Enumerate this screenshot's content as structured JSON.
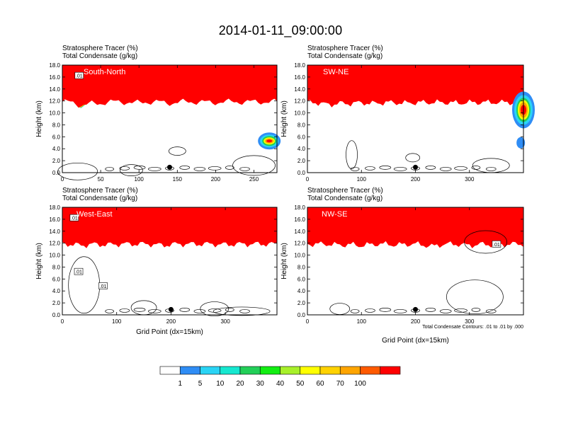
{
  "page": {
    "title": "2014-01-11_09:00:00",
    "contour_note": "Total Condensate Contours: .01 to .01 by .000",
    "xlabel": "Grid Point (dx=15km)",
    "colorbar": {
      "colors": [
        "#ffffff",
        "#2f8df5",
        "#2ad4f5",
        "#16e8d0",
        "#22cf58",
        "#12ee12",
        "#a8f02a",
        "#ffff00",
        "#ffd200",
        "#ffa500",
        "#ff5a00",
        "#ff0000"
      ],
      "labels": [
        "1",
        "5",
        "10",
        "20",
        "30",
        "40",
        "50",
        "60",
        "70",
        "100"
      ]
    }
  },
  "chart_data": [
    {
      "type": "heatmap",
      "region": "South-North",
      "title_line1": "Stratosphere Tracer   (%)",
      "title_line2": "Total Condensate   (g/kg)",
      "ylabel": "Height (km)",
      "xlabel": "",
      "xlim": [
        0,
        280
      ],
      "ylim": [
        0,
        18
      ],
      "xticks": [
        "0",
        "50",
        "100",
        "150",
        "200",
        "250"
      ],
      "yticks": [
        "0.0",
        "2.0",
        "4.0",
        "6.0",
        "8.0",
        "10.0",
        "12.0",
        "14.0",
        "16.0",
        "18.0"
      ],
      "contour_labels": [
        ".01"
      ]
    },
    {
      "type": "heatmap",
      "region": "SW-NE",
      "title_line1": "Stratosphere Tracer   (%)",
      "title_line2": "Total Condensate   (g/kg)",
      "ylabel": "Height (km)",
      "xlabel": "",
      "xlim": [
        0,
        400
      ],
      "ylim": [
        0,
        18
      ],
      "xticks": [
        "0",
        "100",
        "200",
        "300"
      ],
      "yticks": [
        "0.0",
        "2.0",
        "4.0",
        "6.0",
        "8.0",
        "10.0",
        "12.0",
        "14.0",
        "16.0",
        "18.0"
      ],
      "contour_labels": []
    },
    {
      "type": "heatmap",
      "region": "West-East",
      "title_line1": "Stratosphere Tracer   (%)",
      "title_line2": "Total Condensate   (g/kg)",
      "ylabel": "Height (km)",
      "xlabel": "Grid Point (dx=15km)",
      "xlim": [
        0,
        395
      ],
      "ylim": [
        0,
        18
      ],
      "xticks": [
        "0",
        "100",
        "200",
        "300"
      ],
      "yticks": [
        "0.0",
        "2.0",
        "4.0",
        "6.0",
        "8.0",
        "10.0",
        "12.0",
        "14.0",
        "16.0",
        "18.0"
      ],
      "contour_labels": [
        ".01",
        ".01",
        ".01"
      ]
    },
    {
      "type": "heatmap",
      "region": "NW-SE",
      "title_line1": "Stratosphere Tracer   (%)",
      "title_line2": "Total Condensate   (g/kg)",
      "ylabel": "Height (km)",
      "xlabel": "Grid Point (dx=15km)",
      "xlim": [
        0,
        400
      ],
      "ylim": [
        0,
        18
      ],
      "xticks": [
        "0",
        "100",
        "200",
        "300"
      ],
      "yticks": [
        "0.0",
        "2.0",
        "4.0",
        "6.0",
        "8.0",
        "10.0",
        "12.0",
        "14.0",
        "16.0",
        "18.0"
      ],
      "contour_labels": [
        ".01"
      ]
    }
  ]
}
